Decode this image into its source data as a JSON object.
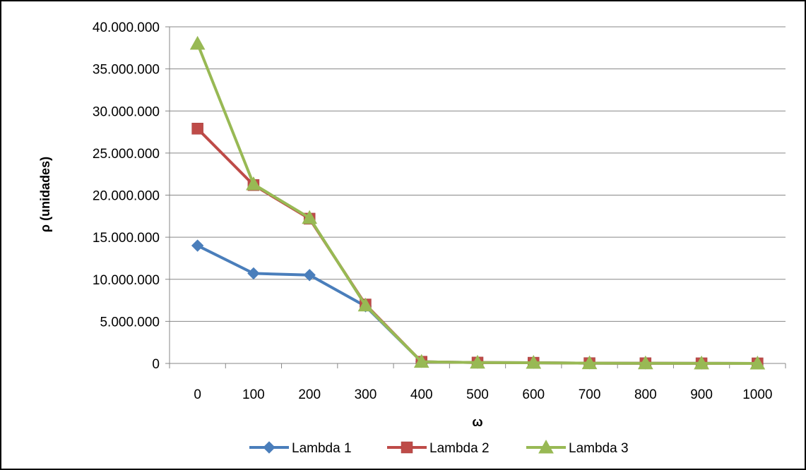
{
  "chart_data": {
    "type": "line",
    "title": "",
    "xlabel": "ω",
    "ylabel": "ρ (unidades)",
    "x": [
      0,
      100,
      200,
      300,
      400,
      500,
      600,
      700,
      800,
      900,
      1000
    ],
    "categories": [
      "0",
      "100",
      "200",
      "300",
      "400",
      "500",
      "600",
      "700",
      "800",
      "900",
      "1000"
    ],
    "ylim": [
      0,
      40000000
    ],
    "yticks": [
      0,
      5000000,
      10000000,
      15000000,
      20000000,
      25000000,
      30000000,
      35000000,
      40000000
    ],
    "ytick_labels": [
      "0",
      "5.000.000",
      "10.000.000",
      "15.000.000",
      "20.000.000",
      "25.000.000",
      "30.000.000",
      "35.000.000",
      "40.000.000"
    ],
    "grid": true,
    "legend_position": "bottom",
    "series": [
      {
        "name": "Lambda 1",
        "color": "#4a7ebb",
        "marker": "diamond",
        "values": [
          14000000,
          10700000,
          10500000,
          6800000,
          200000,
          100000,
          80000,
          30000,
          20000,
          10000,
          5000
        ]
      },
      {
        "name": "Lambda 2",
        "color": "#be4b48",
        "marker": "square",
        "values": [
          27900000,
          21200000,
          17200000,
          7000000,
          200000,
          100000,
          80000,
          30000,
          20000,
          10000,
          5000
        ]
      },
      {
        "name": "Lambda 3",
        "color": "#98b954",
        "marker": "triangle",
        "values": [
          38000000,
          21300000,
          17300000,
          6900000,
          200000,
          100000,
          80000,
          30000,
          20000,
          10000,
          5000
        ]
      }
    ]
  }
}
